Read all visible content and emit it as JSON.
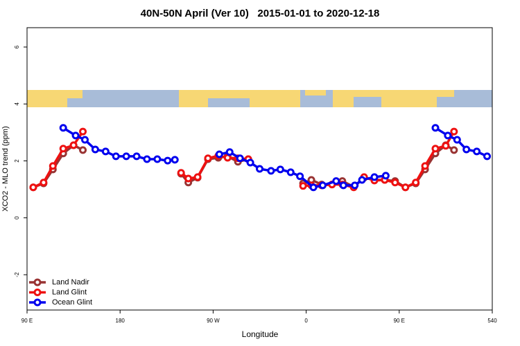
{
  "chart_data": {
    "type": "line",
    "title": "40N-50N April (Ver 10)   2015-01-01 to 2020-12-18",
    "x_label": "Longitude",
    "y_label": "XCO2 - MLO trend (ppm)",
    "xlim": [
      90,
      540
    ],
    "ylim": [
      -3.24,
      6.68
    ],
    "xticks": [
      {
        "value": 90,
        "label": "90 E"
      },
      180,
      {
        "value": 270,
        "label": "90 W"
      },
      {
        "value": 360,
        "label": "0"
      },
      {
        "value": 450,
        "label": "90 E"
      },
      540
    ],
    "yticks": [
      -2,
      0,
      2,
      4,
      6
    ],
    "legend": "bottom-left",
    "series": [
      {
        "name": "Land Nadir",
        "color": "#993333",
        "x": [
          96,
          106,
          115,
          125,
          135,
          144,
          null,
          239,
          246,
          255,
          265,
          275,
          284,
          294,
          304,
          null,
          357,
          365,
          375,
          385,
          395,
          406,
          416,
          426,
          436,
          446,
          456,
          466,
          475,
          485,
          495,
          503
        ],
        "values": [
          1.07,
          1.21,
          1.7,
          2.26,
          2.55,
          2.38,
          null,
          1.55,
          1.24,
          1.41,
          2.06,
          2.11,
          2.16,
          1.97,
          2.06,
          null,
          1.21,
          1.33,
          1.17,
          1.17,
          1.29,
          1.09,
          1.41,
          1.33,
          1.33,
          1.29,
          1.07,
          1.21,
          1.7,
          2.26,
          2.55,
          2.38
        ]
      },
      {
        "name": "Land Glint",
        "color": "#ee1111",
        "x": [
          96,
          106,
          115,
          125,
          135,
          144,
          null,
          239,
          246,
          255,
          265,
          275,
          284,
          294,
          304,
          null,
          357,
          365,
          375,
          385,
          395,
          406,
          416,
          426,
          436,
          446,
          456,
          466,
          475,
          485,
          495,
          503
        ],
        "values": [
          1.07,
          1.24,
          1.82,
          2.43,
          2.55,
          3.03,
          null,
          1.58,
          1.38,
          1.43,
          2.09,
          2.18,
          2.11,
          2.09,
          2.06,
          null,
          1.12,
          1.14,
          1.14,
          1.17,
          1.17,
          1.07,
          1.43,
          1.31,
          1.33,
          1.24,
          1.07,
          1.24,
          1.82,
          2.43,
          2.53,
          3.03
        ]
      },
      {
        "name": "Ocean Glint",
        "color": "#0000ee",
        "x": [
          125,
          137,
          146,
          156,
          166,
          176,
          186,
          196,
          206,
          216,
          226,
          233,
          null,
          276,
          286,
          296,
          306,
          315,
          326,
          335,
          345,
          354,
          367,
          376,
          389,
          396,
          407,
          414,
          426,
          437,
          null,
          485,
          497,
          506,
          515,
          525,
          535
        ],
        "values": [
          3.16,
          2.89,
          2.74,
          2.4,
          2.33,
          2.16,
          2.16,
          2.16,
          2.06,
          2.06,
          2.01,
          2.04,
          null,
          2.23,
          2.31,
          2.09,
          1.94,
          1.72,
          1.65,
          1.7,
          1.6,
          1.46,
          1.07,
          1.14,
          1.29,
          1.14,
          1.14,
          1.33,
          1.43,
          1.48,
          null,
          3.16,
          2.89,
          2.74,
          2.4,
          2.33,
          2.16
        ]
      }
    ]
  }
}
